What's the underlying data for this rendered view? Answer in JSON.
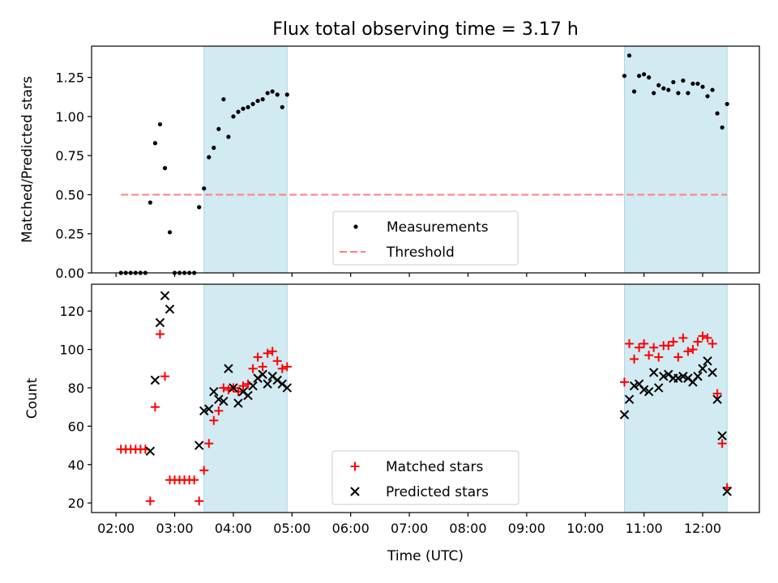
{
  "figure": {
    "title": "Flux total observing time = 3.17 h",
    "xlabel": "Time (UTC)"
  },
  "chart_data": [
    {
      "type": "scatter",
      "ylabel": "Matched/Predicted stars",
      "xlim": [
        "01:35",
        "12:58"
      ],
      "ylim": [
        0,
        1.45
      ],
      "yticks": [
        "0.00",
        "0.25",
        "0.50",
        "0.75",
        "1.00",
        "1.25"
      ],
      "ytick_values": [
        0,
        0.25,
        0.5,
        0.75,
        1.0,
        1.25
      ],
      "legend": "lower-center",
      "shaded_intervals": [
        [
          "03:30",
          "04:55"
        ],
        [
          "10:40",
          "12:25"
        ]
      ],
      "shade_color": "#add8e6",
      "threshold": {
        "name": "Threshold",
        "value": 0.5,
        "x_range": [
          "02:05",
          "12:25"
        ],
        "color": "#ff7f7f",
        "style": "dashed"
      },
      "series": [
        {
          "name": "Measurements",
          "color": "#000000",
          "marker": "dot",
          "points": [
            [
              "02:05",
              0.0
            ],
            [
              "02:10",
              0.0
            ],
            [
              "02:15",
              0.0
            ],
            [
              "02:20",
              0.0
            ],
            [
              "02:25",
              0.0
            ],
            [
              "02:30",
              0.0
            ],
            [
              "02:35",
              0.45
            ],
            [
              "02:40",
              0.83
            ],
            [
              "02:45",
              0.95
            ],
            [
              "02:50",
              0.67
            ],
            [
              "02:55",
              0.26
            ],
            [
              "03:00",
              0.0
            ],
            [
              "03:05",
              0.0
            ],
            [
              "03:10",
              0.0
            ],
            [
              "03:15",
              0.0
            ],
            [
              "03:20",
              0.0
            ],
            [
              "03:25",
              0.42
            ],
            [
              "03:30",
              0.54
            ],
            [
              "03:35",
              0.74
            ],
            [
              "03:40",
              0.8
            ],
            [
              "03:45",
              0.92
            ],
            [
              "03:50",
              1.11
            ],
            [
              "03:55",
              0.87
            ],
            [
              "04:00",
              1.0
            ],
            [
              "04:05",
              1.03
            ],
            [
              "04:10",
              1.05
            ],
            [
              "04:15",
              1.06
            ],
            [
              "04:20",
              1.08
            ],
            [
              "04:25",
              1.1
            ],
            [
              "04:30",
              1.11
            ],
            [
              "04:35",
              1.15
            ],
            [
              "04:40",
              1.16
            ],
            [
              "04:45",
              1.14
            ],
            [
              "04:50",
              1.06
            ],
            [
              "04:55",
              1.14
            ],
            [
              "10:40",
              1.26
            ],
            [
              "10:45",
              1.39
            ],
            [
              "10:50",
              1.16
            ],
            [
              "10:55",
              1.26
            ],
            [
              "11:00",
              1.27
            ],
            [
              "11:05",
              1.25
            ],
            [
              "11:10",
              1.15
            ],
            [
              "11:15",
              1.2
            ],
            [
              "11:20",
              1.18
            ],
            [
              "11:25",
              1.17
            ],
            [
              "11:30",
              1.22
            ],
            [
              "11:35",
              1.15
            ],
            [
              "11:40",
              1.23
            ],
            [
              "11:45",
              1.15
            ],
            [
              "11:50",
              1.21
            ],
            [
              "11:55",
              1.21
            ],
            [
              "12:00",
              1.19
            ],
            [
              "12:05",
              1.13
            ],
            [
              "12:10",
              1.17
            ],
            [
              "12:15",
              1.02
            ],
            [
              "12:20",
              0.93
            ],
            [
              "12:25",
              1.08
            ]
          ]
        }
      ]
    },
    {
      "type": "scatter",
      "ylabel": "Count",
      "xlim": [
        "01:35",
        "12:58"
      ],
      "ylim": [
        15,
        134
      ],
      "yticks": [
        "20",
        "40",
        "60",
        "80",
        "100",
        "120"
      ],
      "ytick_values": [
        20,
        40,
        60,
        80,
        100,
        120
      ],
      "xticks": [
        "02:00",
        "03:00",
        "04:00",
        "05:00",
        "06:00",
        "07:00",
        "08:00",
        "09:00",
        "10:00",
        "11:00",
        "12:00"
      ],
      "legend": "lower-center",
      "shaded_intervals": [
        [
          "03:30",
          "04:55"
        ],
        [
          "10:40",
          "12:25"
        ]
      ],
      "shade_color": "#add8e6",
      "series": [
        {
          "name": "Matched stars",
          "color": "#ff0000",
          "marker": "plus",
          "points": [
            [
              "02:05",
              48
            ],
            [
              "02:10",
              48
            ],
            [
              "02:15",
              48
            ],
            [
              "02:20",
              48
            ],
            [
              "02:25",
              48
            ],
            [
              "02:30",
              48
            ],
            [
              "02:35",
              21
            ],
            [
              "02:40",
              70
            ],
            [
              "02:45",
              108
            ],
            [
              "02:50",
              86
            ],
            [
              "02:55",
              32
            ],
            [
              "03:00",
              32
            ],
            [
              "03:05",
              32
            ],
            [
              "03:10",
              32
            ],
            [
              "03:15",
              32
            ],
            [
              "03:20",
              32
            ],
            [
              "03:25",
              21
            ],
            [
              "03:30",
              37
            ],
            [
              "03:35",
              51
            ],
            [
              "03:40",
              63
            ],
            [
              "03:45",
              68
            ],
            [
              "03:50",
              80
            ],
            [
              "03:55",
              79
            ],
            [
              "04:00",
              80
            ],
            [
              "04:05",
              78
            ],
            [
              "04:10",
              81
            ],
            [
              "04:15",
              82
            ],
            [
              "04:20",
              90
            ],
            [
              "04:25",
              96
            ],
            [
              "04:30",
              91
            ],
            [
              "04:35",
              98
            ],
            [
              "04:40",
              99
            ],
            [
              "04:45",
              94
            ],
            [
              "04:50",
              90
            ],
            [
              "04:55",
              91
            ],
            [
              "10:40",
              83
            ],
            [
              "10:45",
              103
            ],
            [
              "10:50",
              95
            ],
            [
              "10:55",
              101
            ],
            [
              "11:00",
              103
            ],
            [
              "11:05",
              97
            ],
            [
              "11:10",
              101
            ],
            [
              "11:15",
              96
            ],
            [
              "11:20",
              102
            ],
            [
              "11:25",
              102
            ],
            [
              "11:30",
              104
            ],
            [
              "11:35",
              96
            ],
            [
              "11:40",
              106
            ],
            [
              "11:45",
              99
            ],
            [
              "11:50",
              100
            ],
            [
              "11:55",
              104
            ],
            [
              "12:00",
              107
            ],
            [
              "12:05",
              106
            ],
            [
              "12:10",
              103
            ],
            [
              "12:15",
              77
            ],
            [
              "12:20",
              51
            ],
            [
              "12:25",
              28
            ]
          ]
        },
        {
          "name": "Predicted stars",
          "color": "#000000",
          "marker": "x",
          "points": [
            [
              "02:35",
              47
            ],
            [
              "02:40",
              84
            ],
            [
              "02:45",
              114
            ],
            [
              "02:50",
              128
            ],
            [
              "02:55",
              121
            ],
            [
              "03:25",
              50
            ],
            [
              "03:30",
              68
            ],
            [
              "03:35",
              69
            ],
            [
              "03:40",
              78
            ],
            [
              "03:45",
              74
            ],
            [
              "03:50",
              73
            ],
            [
              "03:55",
              90
            ],
            [
              "04:00",
              80
            ],
            [
              "04:05",
              72
            ],
            [
              "04:10",
              78
            ],
            [
              "04:15",
              76
            ],
            [
              "04:20",
              81
            ],
            [
              "04:25",
              85
            ],
            [
              "04:30",
              87
            ],
            [
              "04:35",
              82
            ],
            [
              "04:40",
              86
            ],
            [
              "04:45",
              84
            ],
            [
              "04:50",
              82
            ],
            [
              "04:55",
              80
            ],
            [
              "10:40",
              66
            ],
            [
              "10:45",
              74
            ],
            [
              "10:50",
              81
            ],
            [
              "10:55",
              82
            ],
            [
              "11:00",
              79
            ],
            [
              "11:05",
              78
            ],
            [
              "11:10",
              88
            ],
            [
              "11:15",
              80
            ],
            [
              "11:20",
              86
            ],
            [
              "11:25",
              87
            ],
            [
              "11:30",
              85
            ],
            [
              "11:35",
              85
            ],
            [
              "11:40",
              86
            ],
            [
              "11:45",
              85
            ],
            [
              "11:50",
              83
            ],
            [
              "11:55",
              86
            ],
            [
              "12:00",
              90
            ],
            [
              "12:05",
              94
            ],
            [
              "12:10",
              88
            ],
            [
              "12:15",
              74
            ],
            [
              "12:20",
              55
            ],
            [
              "12:25",
              26
            ]
          ]
        }
      ]
    }
  ]
}
